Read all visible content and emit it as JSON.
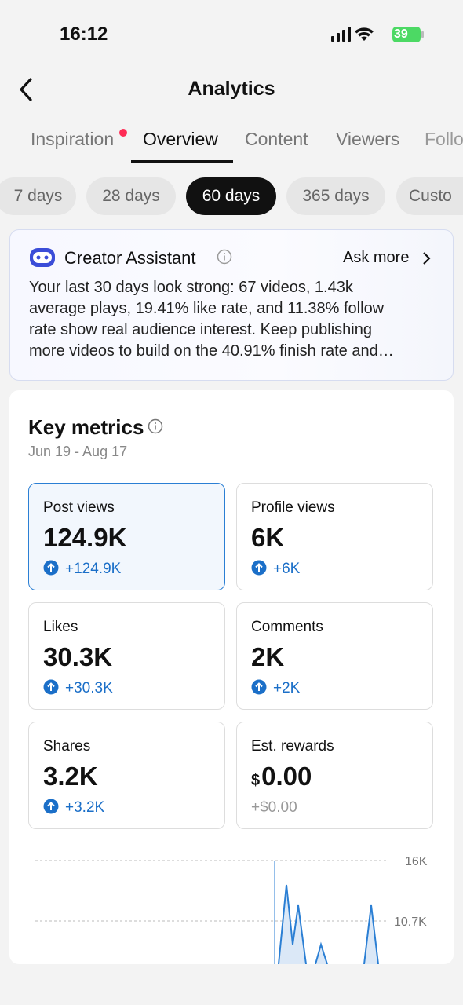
{
  "status": {
    "time": "16:12",
    "battery": "39"
  },
  "header": {
    "title": "Analytics"
  },
  "tabs": [
    "Inspiration",
    "Overview",
    "Content",
    "Viewers",
    "Follo"
  ],
  "ranges": [
    "7 days",
    "28 days",
    "60 days",
    "365 days",
    "Custo"
  ],
  "assistant": {
    "title": "Creator Assistant",
    "action": "Ask more",
    "lines": [
      "Your last 30 days look strong: 67 videos, 1.43k",
      "average plays, 19.41% like rate, and 11.38% follow",
      "rate show real audience interest. Keep publishing",
      "more videos to build on the 40.91% finish rate and…"
    ]
  },
  "key_metrics": {
    "title": "Key metrics",
    "date_range": "Jun 19 - Aug 17",
    "metrics": [
      {
        "label": "Post views",
        "value": "124.9K",
        "change": "+124.9K"
      },
      {
        "label": "Profile views",
        "value": "6K",
        "change": "+6K"
      },
      {
        "label": "Likes",
        "value": "30.3K",
        "change": "+30.3K"
      },
      {
        "label": "Comments",
        "value": "2K",
        "change": "+2K"
      },
      {
        "label": "Shares",
        "value": "3.2K",
        "change": "+3.2K"
      },
      {
        "label": "Est. rewards",
        "currency": "$",
        "value": "0.00",
        "change": "+$0.00"
      }
    ]
  },
  "chart": {
    "yticks": [
      "16K",
      "10.7K"
    ]
  }
}
